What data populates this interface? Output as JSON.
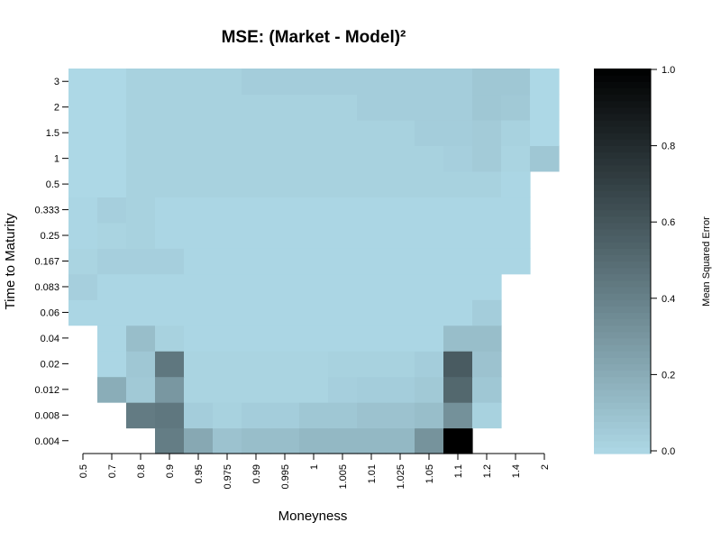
{
  "chart_data": {
    "type": "heatmap",
    "title": "MSE: (Market - Model)²",
    "xlabel": "Moneyness",
    "ylabel": "Time to Maturity",
    "x_categories": [
      "0.5",
      "0.7",
      "0.8",
      "0.9",
      "0.95",
      "0.975",
      "0.99",
      "0.995",
      "1",
      "1.005",
      "1.01",
      "1.025",
      "1.05",
      "1.1",
      "1.2",
      "1.4",
      "2"
    ],
    "y_categories": [
      "0.004",
      "0.008",
      "0.012",
      "0.02",
      "0.04",
      "0.06",
      "0.083",
      "0.167",
      "0.25",
      "0.333",
      "0.5",
      "1",
      "1.5",
      "2",
      "3"
    ],
    "z_comment_rows_ordered_bottom_to_top_columns_left_to_right_nan_means_missing": "",
    "z": [
      [
        null,
        null,
        null,
        0.42,
        0.22,
        0.1,
        0.12,
        0.12,
        0.15,
        0.15,
        0.15,
        0.15,
        0.32,
        1.0,
        null,
        null,
        null
      ],
      [
        null,
        null,
        0.43,
        0.45,
        0.05,
        0.03,
        0.05,
        0.05,
        0.08,
        0.08,
        0.1,
        0.1,
        0.12,
        0.33,
        0.03,
        null,
        null
      ],
      [
        null,
        0.2,
        0.07,
        0.3,
        0.02,
        0.02,
        0.02,
        0.02,
        0.02,
        0.04,
        0.05,
        0.05,
        0.07,
        0.52,
        0.08,
        null,
        null
      ],
      [
        null,
        0.01,
        0.08,
        0.45,
        0.02,
        0.02,
        0.02,
        0.02,
        0.02,
        0.03,
        0.03,
        0.03,
        0.05,
        0.58,
        0.1,
        null,
        null
      ],
      [
        null,
        0.01,
        0.12,
        0.03,
        0.01,
        0.01,
        0.01,
        0.01,
        0.01,
        0.01,
        0.01,
        0.01,
        0.01,
        0.12,
        0.12,
        null,
        null
      ],
      [
        0.01,
        0.01,
        0.01,
        0.01,
        0.01,
        0.01,
        0.01,
        0.01,
        0.01,
        0.01,
        0.01,
        0.01,
        0.01,
        0.01,
        0.05,
        null,
        null
      ],
      [
        0.04,
        0.01,
        0.01,
        0.01,
        0.01,
        0.01,
        0.01,
        0.01,
        0.01,
        0.01,
        0.01,
        0.01,
        0.01,
        0.01,
        0.01,
        null,
        null
      ],
      [
        0.02,
        0.04,
        0.04,
        0.04,
        0.01,
        0.01,
        0.01,
        0.01,
        0.01,
        0.01,
        0.01,
        0.01,
        0.01,
        0.01,
        0.01,
        0.01,
        null
      ],
      [
        0.01,
        0.02,
        0.03,
        0.01,
        0.01,
        0.01,
        0.01,
        0.01,
        0.01,
        0.01,
        0.01,
        0.01,
        0.01,
        0.01,
        0.01,
        0.01,
        null
      ],
      [
        0.01,
        0.04,
        0.03,
        0.01,
        0.01,
        0.01,
        0.01,
        0.01,
        0.01,
        0.01,
        0.01,
        0.01,
        0.01,
        0.01,
        0.01,
        0.01,
        null
      ],
      [
        0.0,
        0.0,
        0.03,
        0.03,
        0.03,
        0.03,
        0.03,
        0.03,
        0.03,
        0.03,
        0.03,
        0.03,
        0.03,
        0.03,
        0.03,
        0.01,
        null
      ],
      [
        0.0,
        0.0,
        0.03,
        0.03,
        0.03,
        0.03,
        0.03,
        0.03,
        0.03,
        0.03,
        0.03,
        0.03,
        0.03,
        0.04,
        0.06,
        0.02,
        0.08
      ],
      [
        0.0,
        0.0,
        0.03,
        0.03,
        0.03,
        0.03,
        0.03,
        0.03,
        0.03,
        0.03,
        0.03,
        0.03,
        0.05,
        0.05,
        0.06,
        0.03,
        0.0
      ],
      [
        0.0,
        0.0,
        0.03,
        0.03,
        0.03,
        0.03,
        0.03,
        0.03,
        0.03,
        0.03,
        0.05,
        0.05,
        0.05,
        0.05,
        0.08,
        0.07,
        0.0
      ],
      [
        0.0,
        0.0,
        0.03,
        0.03,
        0.03,
        0.03,
        0.05,
        0.05,
        0.05,
        0.05,
        0.05,
        0.05,
        0.05,
        0.05,
        0.08,
        0.08,
        0.0
      ]
    ],
    "zlim": [
      0,
      1
    ],
    "colorbar": {
      "label": "Mean Squared Error",
      "ticks": [
        "0.0",
        "0.2",
        "0.4",
        "0.6",
        "0.8",
        "1.0"
      ],
      "tick_values": [
        0,
        0.2,
        0.4,
        0.6,
        0.8,
        1.0
      ],
      "low_color": "#add8e6",
      "high_color": "#000000"
    }
  }
}
